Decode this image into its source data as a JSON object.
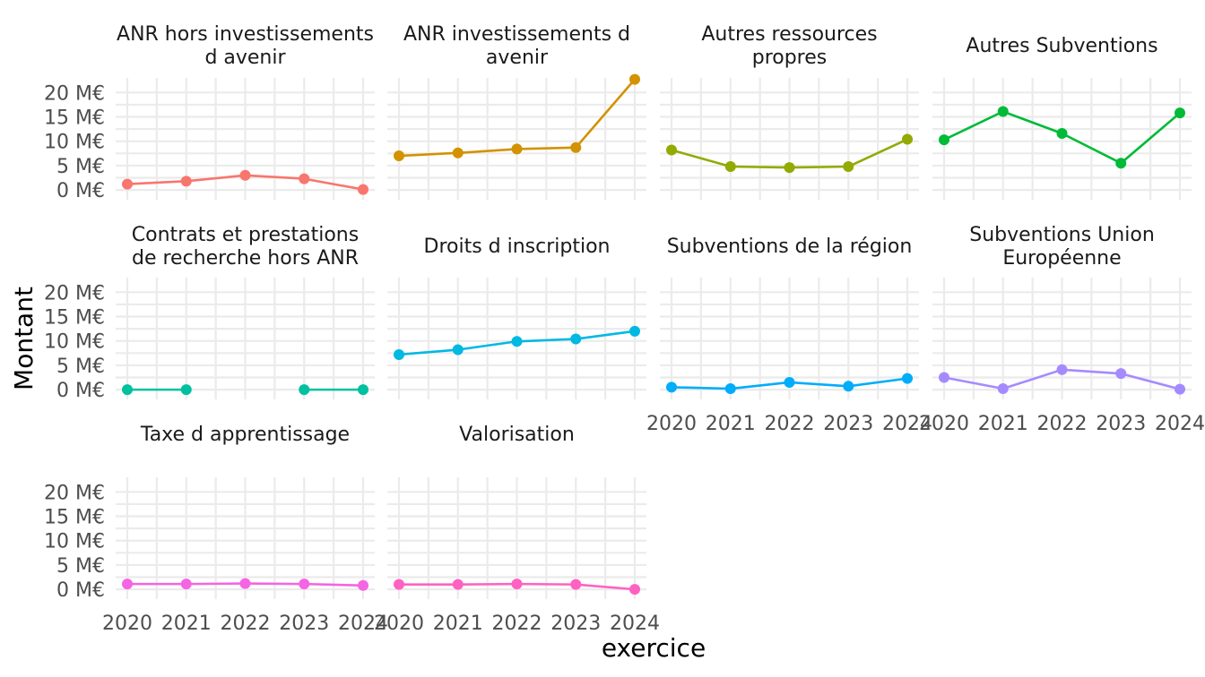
{
  "chart_data": {
    "type": "line",
    "layout": "facet_wrap",
    "xlabel": "exercice",
    "ylabel": "Montant",
    "x": [
      2020,
      2021,
      2022,
      2023,
      2024
    ],
    "ylim": [
      -2,
      23
    ],
    "y_ticks": [
      0,
      5,
      10,
      15,
      20
    ],
    "y_tick_labels": [
      "0 M€",
      "5 M€",
      "10 M€",
      "15 M€",
      "20 M€"
    ],
    "x_tick_labels": [
      "2020",
      "2021",
      "2022",
      "2023",
      "2024"
    ],
    "grid": true,
    "legend": "none",
    "panels": [
      {
        "title": [
          "ANR hors investissements",
          "d avenir"
        ],
        "color": "#F8766D",
        "values": [
          1.2,
          1.8,
          3.0,
          2.3,
          0.1
        ]
      },
      {
        "title": [
          "ANR investissements d",
          "avenir"
        ],
        "color": "#D39200",
        "values": [
          7.0,
          7.6,
          8.4,
          8.7,
          22.7
        ]
      },
      {
        "title": [
          "Autres ressources",
          "propres"
        ],
        "color": "#93AA00",
        "values": [
          8.2,
          4.8,
          4.6,
          4.8,
          10.4
        ]
      },
      {
        "title": [
          "Autres Subventions"
        ],
        "color": "#00BA38",
        "values": [
          10.3,
          16.1,
          11.6,
          5.5,
          15.8
        ]
      },
      {
        "title": [
          "Contrats et prestations",
          "de recherche hors ANR"
        ],
        "color": "#00C19F",
        "values": [
          0.0,
          0.0,
          null,
          0.0,
          0.0
        ]
      },
      {
        "title": [
          "Droits d inscription"
        ],
        "color": "#00B9E3",
        "values": [
          7.2,
          8.2,
          9.9,
          10.4,
          12.0
        ]
      },
      {
        "title": [
          "Subventions de la région"
        ],
        "color": "#00ADFA",
        "values": [
          0.5,
          0.2,
          1.5,
          0.7,
          2.3
        ]
      },
      {
        "title": [
          "Subventions Union",
          "Européenne"
        ],
        "color": "#A58AFF",
        "values": [
          2.5,
          0.2,
          4.1,
          3.3,
          0.1
        ]
      },
      {
        "title": [
          "Taxe d apprentissage"
        ],
        "color": "#F564E3",
        "values": [
          1.1,
          1.1,
          1.2,
          1.1,
          0.8
        ]
      },
      {
        "title": [
          "Valorisation"
        ],
        "color": "#FF61C3",
        "values": [
          1.0,
          1.0,
          1.1,
          1.0,
          0.0
        ]
      }
    ]
  }
}
